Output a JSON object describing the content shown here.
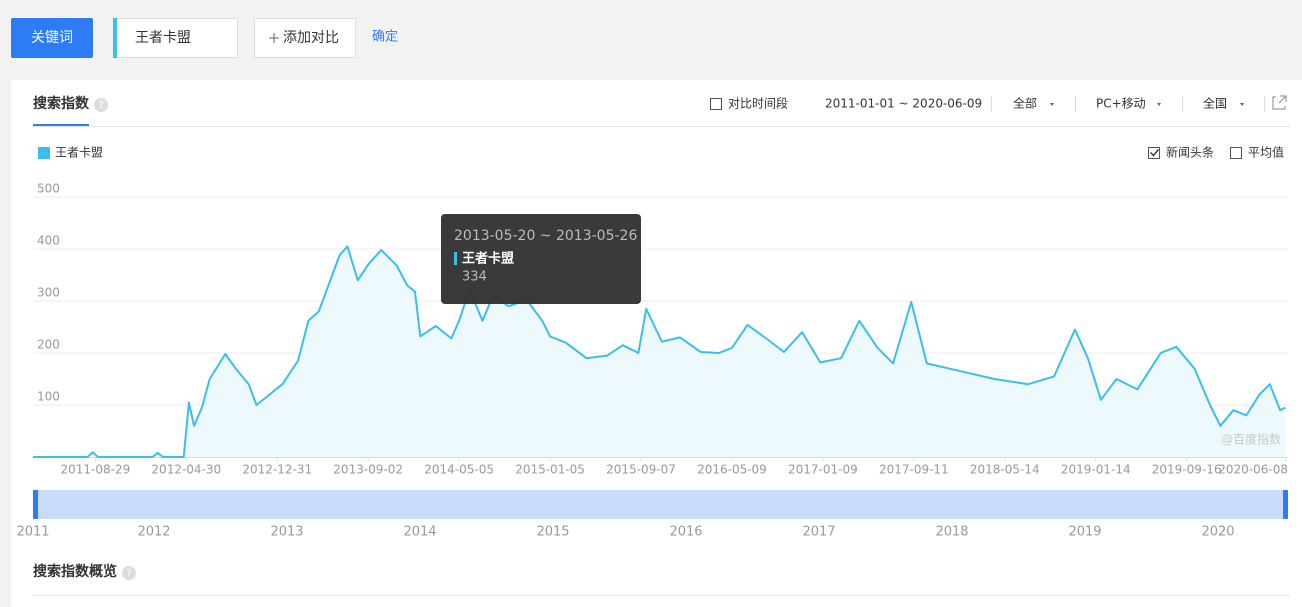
{
  "toolbar": {
    "keyword_button": "关键词",
    "keyword": "王者卡盟",
    "add_compare": "添加对比",
    "confirm": "确定"
  },
  "panel": {
    "tab": "搜索指数",
    "compare_period": "对比时间段",
    "date_range": "2011-01-01 ~ 2020-06-09",
    "source": "全部",
    "device": "PC+移动",
    "region": "全国",
    "news": "新闻头条",
    "news_checked": true,
    "average": "平均值",
    "average_checked": false,
    "watermark": "@百度指数",
    "overview": "搜索指数概览"
  },
  "chart_data": {
    "type": "line",
    "x": [
      "2011-03-14",
      "2011-08-08",
      "2011-08-22",
      "2011-09-05",
      "2012-01-30",
      "2012-02-13",
      "2012-02-27",
      "2012-04-23",
      "2012-05-07",
      "2012-05-21",
      "2012-06-11",
      "2012-07-02",
      "2012-08-13",
      "2012-09-10",
      "2012-10-15",
      "2012-11-05",
      "2012-12-10",
      "2013-01-14",
      "2013-02-25",
      "2013-03-25",
      "2013-04-22",
      "2013-05-20",
      "2013-06-17",
      "2013-07-08",
      "2013-08-05",
      "2013-09-02",
      "2013-10-07",
      "2013-11-18",
      "2013-12-16",
      "2014-01-06",
      "2014-01-20",
      "2014-03-03",
      "2014-04-14",
      "2014-05-05",
      "2014-06-02",
      "2014-07-07",
      "2014-08-04",
      "2014-09-15",
      "2014-11-03",
      "2014-12-15",
      "2015-01-05",
      "2015-02-16",
      "2015-04-13",
      "2015-06-08",
      "2015-07-20",
      "2015-08-31",
      "2015-09-21",
      "2015-11-02",
      "2015-12-21",
      "2016-02-15",
      "2016-04-04",
      "2016-05-09",
      "2016-06-20",
      "2016-08-15",
      "2016-09-26",
      "2016-11-14",
      "2017-01-02",
      "2017-02-27",
      "2017-04-17",
      "2017-06-05",
      "2017-07-17",
      "2017-09-04",
      "2017-10-16",
      "2018-01-15",
      "2018-04-16",
      "2018-07-16",
      "2018-09-24",
      "2018-11-19",
      "2018-12-24",
      "2019-01-28",
      "2019-03-11",
      "2019-05-06",
      "2019-07-08",
      "2019-08-19",
      "2019-10-07",
      "2019-11-18",
      "2019-12-16",
      "2020-01-20",
      "2020-02-24",
      "2020-03-30",
      "2020-04-27",
      "2020-05-25",
      "2020-06-08"
    ],
    "series": [
      {
        "name": "王者卡盟",
        "color": "#3bbfe9",
        "area_color": "#eef9fd",
        "values": [
          0,
          0,
          9,
          0,
          0,
          8,
          0,
          0,
          105,
          60,
          95,
          150,
          198,
          170,
          140,
          100,
          120,
          140,
          185,
          262,
          280,
          334,
          388,
          405,
          340,
          370,
          398,
          368,
          330,
          318,
          232,
          252,
          228,
          262,
          322,
          262,
          310,
          290,
          302,
          262,
          232,
          220,
          190,
          195,
          215,
          200,
          285,
          222,
          230,
          202,
          200,
          210,
          254,
          225,
          202,
          240,
          182,
          190,
          262,
          210,
          180,
          298,
          180,
          165,
          150,
          140,
          155,
          245,
          190,
          110,
          150,
          130,
          200,
          212,
          170,
          100,
          60,
          90,
          80,
          120,
          140,
          90,
          95
        ]
      }
    ],
    "xlim": [
      "2011-03-14",
      "2020-06-15"
    ],
    "xticks": [
      "2011-08-29",
      "2012-04-30",
      "2012-12-31",
      "2013-09-02",
      "2014-05-05",
      "2015-01-05",
      "2015-09-07",
      "2016-05-09",
      "2017-01-09",
      "2017-09-11",
      "2018-05-14",
      "2019-01-14",
      "2019-09-16",
      "2020-06-08"
    ],
    "ylim": [
      0,
      500
    ],
    "yticks": [
      100,
      200,
      300,
      400,
      500
    ],
    "grid": true,
    "tooltip": {
      "date": "2013-05-20 ~ 2013-05-26",
      "series": "王者卡盟",
      "value": 334
    }
  },
  "navigator": {
    "labels": [
      "2011",
      "2012",
      "2013",
      "2014",
      "2015",
      "2016",
      "2017",
      "2018",
      "2019",
      "2020"
    ]
  }
}
